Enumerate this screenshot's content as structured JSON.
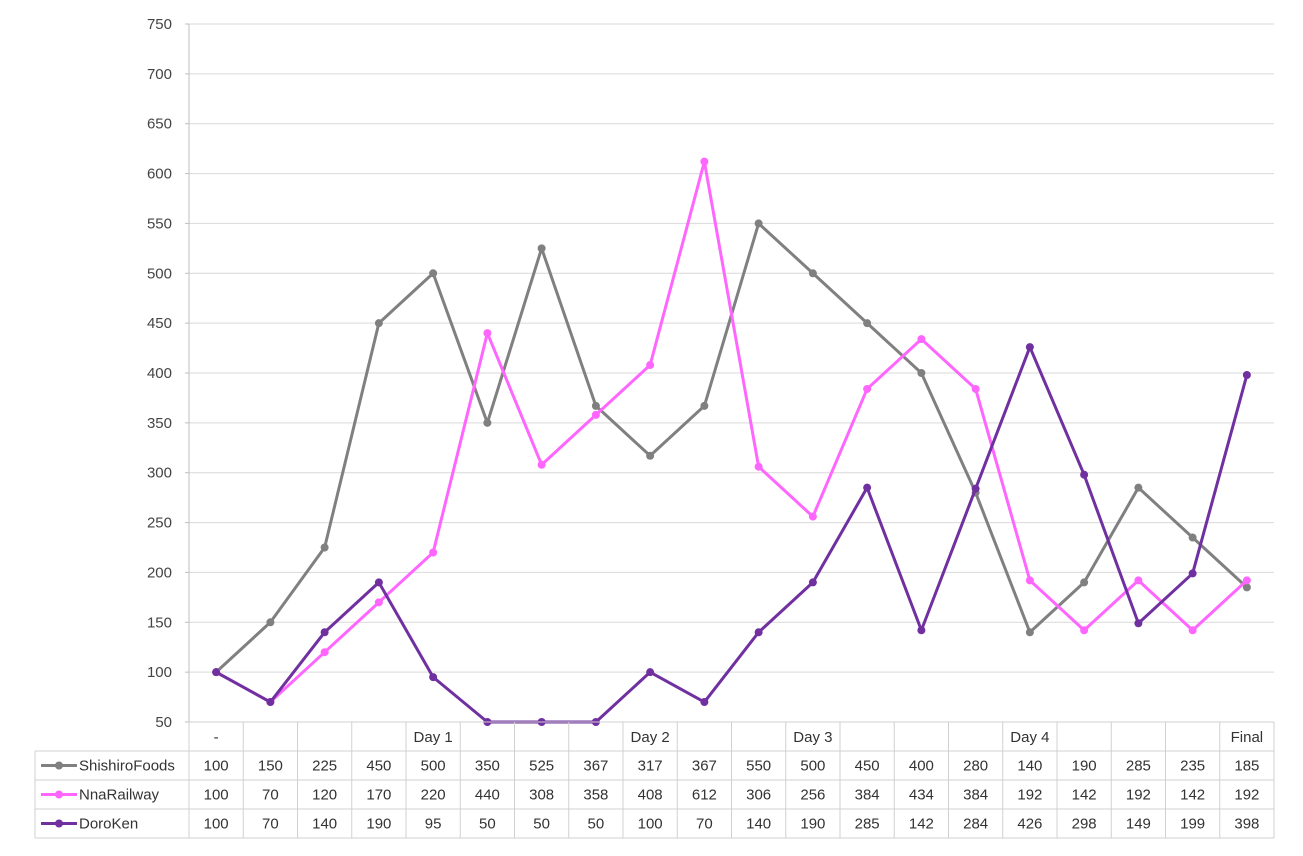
{
  "chart_data": {
    "type": "line",
    "title": "",
    "xlabel": "",
    "ylabel": "",
    "ylim": [
      50,
      750
    ],
    "yticks": [
      50,
      100,
      150,
      200,
      250,
      300,
      350,
      400,
      450,
      500,
      550,
      600,
      650,
      700,
      750
    ],
    "grid": true,
    "legend": "data-table-left",
    "categories": [
      "-",
      "",
      "",
      "",
      "Day 1",
      "",
      "",
      "",
      "Day 2",
      "",
      "",
      "Day 3",
      "",
      "",
      "",
      "Day 4",
      "",
      "",
      "",
      "Final"
    ],
    "series": [
      {
        "name": "ShishiroFoods",
        "color": "#808080",
        "values": [
          100,
          150,
          225,
          450,
          500,
          350,
          525,
          367,
          317,
          367,
          550,
          500,
          450,
          400,
          280,
          140,
          190,
          285,
          235,
          185
        ]
      },
      {
        "name": "NnaRailway",
        "color": "#ff66ff",
        "values": [
          100,
          70,
          120,
          170,
          220,
          440,
          308,
          358,
          408,
          612,
          306,
          256,
          384,
          434,
          384,
          192,
          142,
          192,
          142,
          192
        ]
      },
      {
        "name": "DoroKen",
        "color": "#7030a0",
        "values": [
          100,
          70,
          140,
          190,
          95,
          50,
          50,
          50,
          100,
          70,
          140,
          190,
          285,
          142,
          284,
          426,
          298,
          149,
          199,
          398
        ]
      }
    ]
  }
}
